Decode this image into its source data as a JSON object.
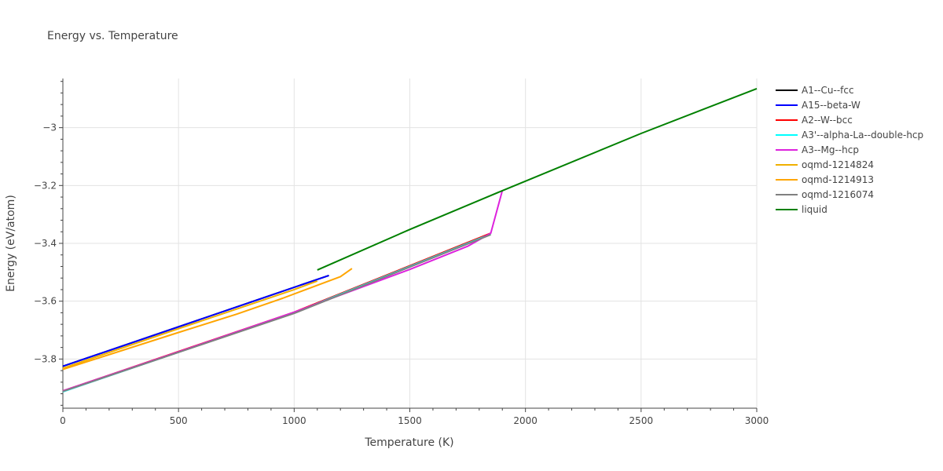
{
  "chart_data": {
    "type": "line",
    "title": "Energy vs. Temperature",
    "xlabel": "Temperature (K)",
    "ylabel": "Energy (eV/atom)",
    "xlim": [
      0,
      3000
    ],
    "ylim": [
      -3.97,
      -2.83
    ],
    "xticks": [
      0,
      500,
      1000,
      1500,
      2000,
      2500,
      3000
    ],
    "xtick_labels": [
      "0",
      "500",
      "1000",
      "1500",
      "2000",
      "2500",
      "3000"
    ],
    "yticks": [
      -3.8,
      -3.6,
      -3.4,
      -3.2,
      -3.0
    ],
    "ytick_labels": [
      "−3.8",
      "−3.6",
      "−3.4",
      "−3.2",
      "−3"
    ],
    "grid": true,
    "legend_position": "right",
    "series": [
      {
        "name": "A1--Cu--fcc",
        "color": "#000000",
        "x": [
          0,
          1150
        ],
        "y": [
          -3.825,
          -3.511
        ]
      },
      {
        "name": "A15--beta-W",
        "color": "#0000ff",
        "x": [
          0,
          1150
        ],
        "y": [
          -3.825,
          -3.511
        ]
      },
      {
        "name": "A2--W--bcc",
        "color": "#ff0000",
        "x": [
          0,
          1000,
          1850
        ],
        "y": [
          -3.91,
          -3.638,
          -3.365
        ]
      },
      {
        "name": "A3'--alpha-La--double-hcp",
        "color": "#00ffff",
        "x": [
          0,
          1000,
          1850
        ],
        "y": [
          -3.913,
          -3.64,
          -3.368
        ]
      },
      {
        "name": "A3--Mg--hcp",
        "color": "#dd22dd",
        "x": [
          0,
          500,
          1000,
          1500,
          1750,
          1850,
          1900
        ],
        "y": [
          -3.91,
          -3.775,
          -3.638,
          -3.49,
          -3.41,
          -3.365,
          -3.218
        ]
      },
      {
        "name": "oqmd-1214824",
        "color": "#f0b000",
        "x": [
          0,
          500,
          1000,
          1100
        ],
        "y": [
          -3.832,
          -3.695,
          -3.56,
          -3.53
        ]
      },
      {
        "name": "oqmd-1214913",
        "color": "#ffa500",
        "x": [
          0,
          500,
          750,
          950,
          1200,
          1250
        ],
        "y": [
          -3.836,
          -3.708,
          -3.645,
          -3.59,
          -3.515,
          -3.487
        ]
      },
      {
        "name": "oqmd-1216074",
        "color": "#808080",
        "x": [
          0,
          1000,
          1850
        ],
        "y": [
          -3.912,
          -3.642,
          -3.37
        ]
      },
      {
        "name": "liquid",
        "color": "#008000",
        "x": [
          1100,
          1500,
          1900,
          2500,
          3000
        ],
        "y": [
          -3.492,
          -3.352,
          -3.218,
          -3.02,
          -2.865
        ]
      }
    ]
  }
}
